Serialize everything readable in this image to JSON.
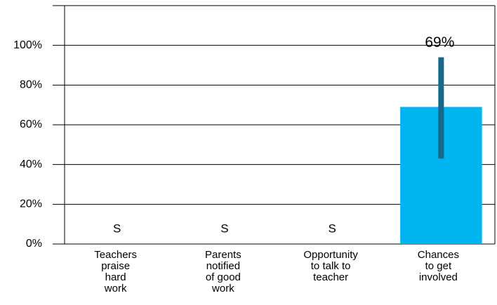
{
  "chart_data": {
    "type": "bar",
    "categories": [
      [
        "Teachers",
        "praise",
        "hard",
        "work"
      ],
      [
        "Parents",
        "notified",
        "of good",
        "work"
      ],
      [
        "Opportunity",
        "to talk to",
        "teacher"
      ],
      [
        "Chances",
        "to get",
        "involved"
      ]
    ],
    "values": [
      null,
      null,
      null,
      69
    ],
    "value_labels": [
      "S",
      "S",
      "S",
      "69%"
    ],
    "error_low": [
      null,
      null,
      null,
      43
    ],
    "error_high": [
      null,
      null,
      null,
      94
    ],
    "color": "#00b4f0",
    "error_color": "#17698a",
    "ylim": [
      0,
      120
    ],
    "yticks": [
      {
        "value": 0,
        "label": "0%"
      },
      {
        "value": 20,
        "label": "20%"
      },
      {
        "value": 40,
        "label": "40%"
      },
      {
        "value": 60,
        "label": "60%"
      },
      {
        "value": 80,
        "label": "80%"
      },
      {
        "value": 100,
        "label": "100%"
      }
    ],
    "grid": true
  }
}
